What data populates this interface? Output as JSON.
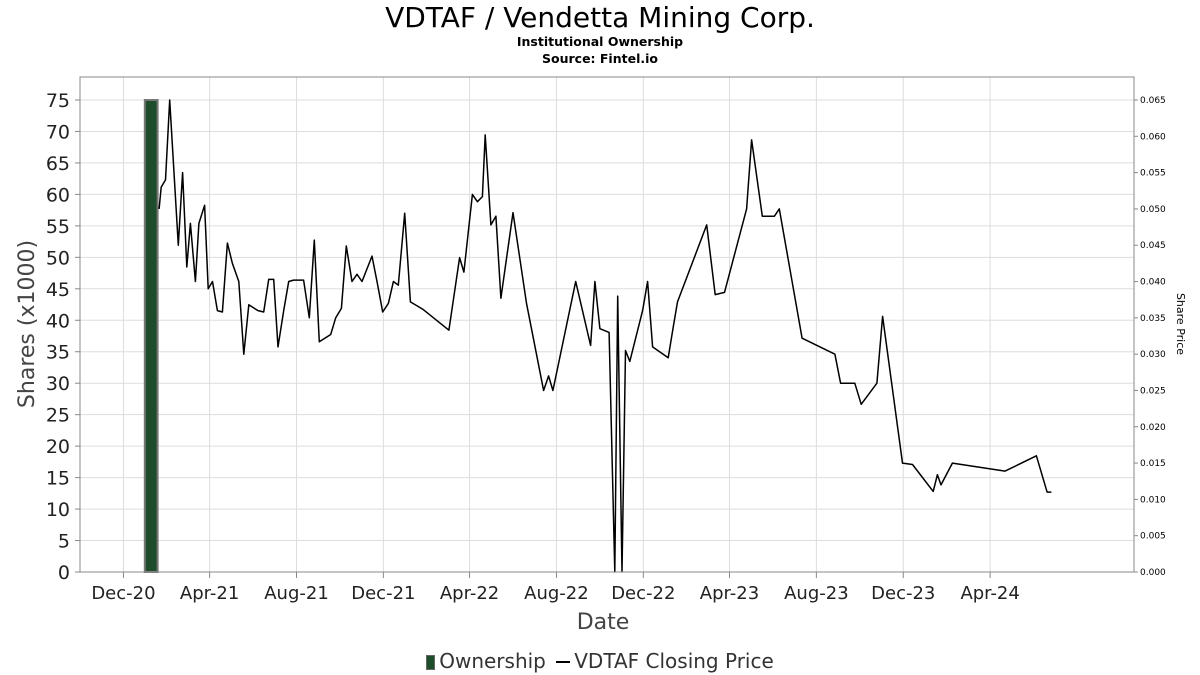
{
  "header": {
    "title": "VDTAF / Vendetta Mining Corp.",
    "subtitle": "Institutional Ownership",
    "source": "Source: Fintel.io"
  },
  "legend": {
    "ownership_label": "Ownership",
    "price_label": "VDTAF Closing Price"
  },
  "colors": {
    "ownership_bar": "#1e4d2b",
    "price_line": "#000000",
    "grid": "#dddddd"
  },
  "chart_data": {
    "type": "bar",
    "xlabel": "Date",
    "ylabel": "Shares (x1000)",
    "y2label": "Share Price",
    "ylim": [
      0,
      78
    ],
    "y2lim": [
      0,
      0.068
    ],
    "grid": true,
    "legend_position": "bottom",
    "x_tick_labels": [
      "Dec-20",
      "Apr-21",
      "Aug-21",
      "Dec-21",
      "Apr-22",
      "Aug-22",
      "Dec-22",
      "Apr-23",
      "Aug-23",
      "Dec-23",
      "Apr-24"
    ],
    "x_ticks": [
      "2020-12-01",
      "2021-04-01",
      "2021-08-01",
      "2021-12-01",
      "2022-04-01",
      "2022-08-01",
      "2022-12-01",
      "2023-04-01",
      "2023-08-01",
      "2023-12-01",
      "2024-04-01"
    ],
    "y_ticks": [
      0,
      5,
      10,
      15,
      20,
      25,
      30,
      35,
      40,
      45,
      50,
      55,
      60,
      65,
      70,
      75
    ],
    "y2_ticks": [
      "0.000",
      "0.005",
      "0.010",
      "0.015",
      "0.020",
      "0.025",
      "0.030",
      "0.035",
      "0.040",
      "0.045",
      "0.050",
      "0.055",
      "0.060",
      "0.065"
    ],
    "series": [
      {
        "name": "Ownership",
        "kind": "bar",
        "bars": [
          {
            "start": "2020-12-31",
            "end": "2021-01-18",
            "value": 75
          }
        ]
      },
      {
        "name": "VDTAF Closing Price",
        "kind": "line",
        "points": [
          [
            "2021-01-20",
            0.05
          ],
          [
            "2021-01-23",
            0.053
          ],
          [
            "2021-01-29",
            0.054
          ],
          [
            "2021-02-04",
            0.065
          ],
          [
            "2021-02-16",
            0.045
          ],
          [
            "2021-02-22",
            0.055
          ],
          [
            "2021-02-28",
            0.042
          ],
          [
            "2021-03-05",
            0.048
          ],
          [
            "2021-03-12",
            0.04
          ],
          [
            "2021-03-17",
            0.048
          ],
          [
            "2021-03-25",
            0.0505
          ],
          [
            "2021-03-30",
            0.039
          ],
          [
            "2021-04-05",
            0.04
          ],
          [
            "2021-04-12",
            0.036
          ],
          [
            "2021-04-19",
            0.0358
          ],
          [
            "2021-04-26",
            0.0453
          ],
          [
            "2021-05-03",
            0.0425
          ],
          [
            "2021-05-12",
            0.04
          ],
          [
            "2021-05-19",
            0.03
          ],
          [
            "2021-05-26",
            0.0368
          ],
          [
            "2021-06-08",
            0.036
          ],
          [
            "2021-06-16",
            0.0358
          ],
          [
            "2021-06-23",
            0.0403
          ],
          [
            "2021-06-30",
            0.0403
          ],
          [
            "2021-07-06",
            0.031
          ],
          [
            "2021-07-14",
            0.036
          ],
          [
            "2021-07-21",
            0.04
          ],
          [
            "2021-07-28",
            0.0402
          ],
          [
            "2021-08-11",
            0.0402
          ],
          [
            "2021-08-19",
            0.035
          ],
          [
            "2021-08-26",
            0.0457
          ],
          [
            "2021-09-02",
            0.0317
          ],
          [
            "2021-09-18",
            0.0327
          ],
          [
            "2021-09-25",
            0.035
          ],
          [
            "2021-10-03",
            0.0363
          ],
          [
            "2021-10-10",
            0.0449
          ],
          [
            "2021-10-18",
            0.04
          ],
          [
            "2021-10-25",
            0.041
          ],
          [
            "2021-11-01",
            0.04
          ],
          [
            "2021-11-15",
            0.0435
          ],
          [
            "2021-11-22",
            0.04
          ],
          [
            "2021-11-30",
            0.0358
          ],
          [
            "2021-12-08",
            0.037
          ],
          [
            "2021-12-15",
            0.04
          ],
          [
            "2021-12-22",
            0.0395
          ],
          [
            "2021-12-31",
            0.0494
          ],
          [
            "2022-01-08",
            0.0372
          ],
          [
            "2022-01-25",
            0.0362
          ],
          [
            "2022-03-03",
            0.0333
          ],
          [
            "2022-03-18",
            0.0433
          ],
          [
            "2022-03-24",
            0.0413
          ],
          [
            "2022-04-05",
            0.052
          ],
          [
            "2022-04-12",
            0.051
          ],
          [
            "2022-04-19",
            0.0517
          ],
          [
            "2022-04-23",
            0.0602
          ],
          [
            "2022-05-01",
            0.0478
          ],
          [
            "2022-05-08",
            0.049
          ],
          [
            "2022-05-15",
            0.0377
          ],
          [
            "2022-06-01",
            0.0495
          ],
          [
            "2022-06-20",
            0.037
          ],
          [
            "2022-07-14",
            0.025
          ],
          [
            "2022-07-21",
            0.027
          ],
          [
            "2022-07-27",
            0.025
          ],
          [
            "2022-08-28",
            0.04
          ],
          [
            "2022-09-18",
            0.0312
          ],
          [
            "2022-09-24",
            0.04
          ],
          [
            "2022-10-01",
            0.0335
          ],
          [
            "2022-10-14",
            0.033
          ],
          [
            "2022-10-22",
            0.0
          ],
          [
            "2022-10-26",
            0.038
          ],
          [
            "2022-11-01",
            0.0
          ],
          [
            "2022-11-06",
            0.0305
          ],
          [
            "2022-11-12",
            0.029
          ],
          [
            "2022-11-30",
            0.036
          ],
          [
            "2022-12-07",
            0.04
          ],
          [
            "2022-12-14",
            0.031
          ],
          [
            "2023-01-05",
            0.0295
          ],
          [
            "2023-01-12",
            0.0337
          ],
          [
            "2023-01-18",
            0.0372
          ],
          [
            "2023-02-28",
            0.0478
          ],
          [
            "2023-03-12",
            0.0382
          ],
          [
            "2023-03-25",
            0.0385
          ],
          [
            "2023-04-25",
            0.05
          ],
          [
            "2023-05-02",
            0.0595
          ],
          [
            "2023-05-17",
            0.049
          ],
          [
            "2023-06-03",
            0.049
          ],
          [
            "2023-06-10",
            0.05
          ],
          [
            "2023-07-12",
            0.0322
          ],
          [
            "2023-08-27",
            0.03
          ],
          [
            "2023-09-04",
            0.026
          ],
          [
            "2023-09-24",
            0.026
          ],
          [
            "2023-10-03",
            0.0231
          ],
          [
            "2023-10-25",
            0.026
          ],
          [
            "2023-11-02",
            0.0352
          ],
          [
            "2023-11-30",
            0.015
          ],
          [
            "2023-12-14",
            0.0148
          ],
          [
            "2024-01-12",
            0.0111
          ],
          [
            "2024-01-18",
            0.0134
          ],
          [
            "2024-01-23",
            0.012
          ],
          [
            "2024-02-08",
            0.015
          ],
          [
            "2024-04-22",
            0.0139
          ],
          [
            "2024-06-05",
            0.016
          ],
          [
            "2024-06-20",
            0.011
          ],
          [
            "2024-06-26",
            0.011
          ]
        ]
      }
    ]
  }
}
